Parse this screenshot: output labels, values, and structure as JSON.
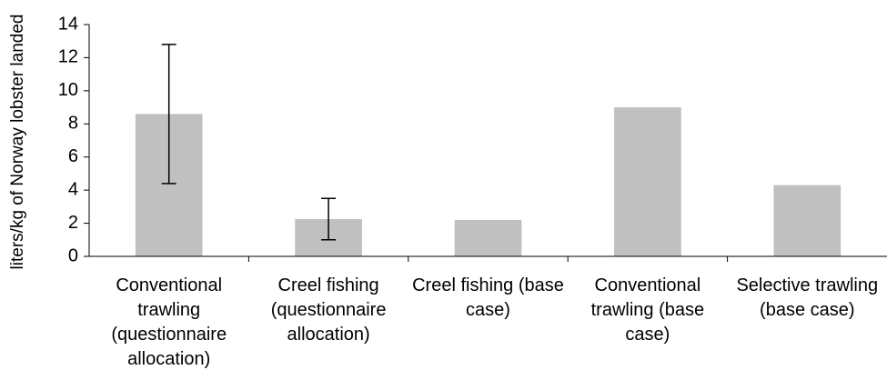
{
  "chart_data": {
    "type": "bar",
    "y_label": "liters/kg of Norway lobster landed",
    "categories": [
      "Conventional trawling (questionnaire allocation)",
      "Creel fishing (questionnaire allocation)",
      "Creel fishing (base case)",
      "Conventional trawling (base case)",
      "Selective trawling (base case)"
    ],
    "values": [
      8.6,
      2.25,
      2.2,
      9.0,
      4.3
    ],
    "errors": [
      4.2,
      1.25,
      null,
      null,
      null
    ],
    "color": "#c0c0c0",
    "ylim": [
      0,
      14
    ],
    "yticks": [
      0,
      2,
      4,
      6,
      8,
      10,
      12,
      14
    ],
    "grid": false
  }
}
